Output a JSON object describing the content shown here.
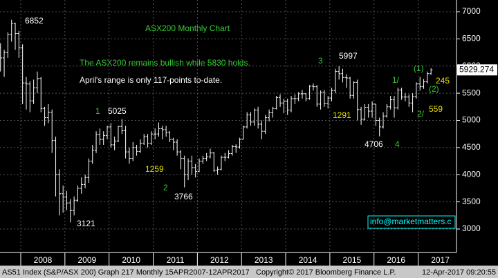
{
  "chart_data": {
    "type": "ohlc",
    "title": "ASX200 Monthly Chart",
    "notes": [
      "The ASX200 remains bullish while 5830 holds.",
      "April's range is only 117-points to-date."
    ],
    "annotations": [
      "6852",
      "1",
      "5025",
      "1259",
      "2",
      "3766",
      "3121",
      "3",
      "5997",
      "1291",
      "4706",
      "4",
      "1/",
      "(1)",
      "(2)",
      "245",
      "2/",
      "559"
    ],
    "xticks": [
      "2008",
      "2009",
      "2010",
      "2011",
      "2012",
      "2013",
      "2014",
      "2015",
      "2016",
      "2017"
    ],
    "ylim": [
      2700,
      7200
    ],
    "yticks": [
      3000,
      3500,
      4000,
      4500,
      5000,
      5500,
      6000,
      6500,
      7000
    ],
    "grid": true,
    "color": "#ffffff",
    "watermark": "info@marketmatters.c",
    "footer": [
      "AS51 Index (S&P/ASX 200) Graph 217  Monthly 15APR2007-12APR2017",
      "Copyright© 2017 Bloomberg Finance L.P.",
      "12-Apr-2017 09:20:55"
    ],
    "ohlc": {
      "open": [
        6000,
        6330,
        6400,
        6340,
        6150,
        6250,
        6580,
        6780,
        6600,
        6340,
        5690,
        5670,
        5360,
        5600,
        5770,
        5220,
        5050,
        5150,
        4630,
        4000,
        3650,
        3590,
        3480,
        3340,
        3530,
        3750,
        3820,
        3950,
        4250,
        4450,
        4740,
        4650,
        4720,
        4880,
        4550,
        4620,
        4890,
        4810,
        4420,
        4300,
        4500,
        4430,
        4580,
        4700,
        4580,
        4750,
        4750,
        4850,
        4830,
        4780,
        4650,
        4600,
        4420,
        4300,
        4000,
        4250,
        4130,
        4060,
        4250,
        4300,
        4330,
        4400,
        4080,
        4100,
        4320,
        4320,
        4390,
        4520,
        4510,
        4650,
        4880,
        5100,
        4970,
        5190,
        4930,
        4800,
        5050,
        5140,
        5220,
        5420,
        5320,
        5350,
        5190,
        5400,
        5400,
        5490,
        5490,
        5400,
        5630,
        5620,
        5300,
        5520,
        5310,
        5410,
        5550,
        5900,
        5860,
        5790,
        5780,
        5460,
        5700,
        5200,
        5020,
        5240,
        5170,
        5300,
        5000,
        4880,
        5080,
        5250,
        5380,
        5230,
        5560,
        5430,
        5430,
        5320,
        5440,
        5670,
        5620,
        5710,
        5860
      ],
      "high": [
        6400,
        6450,
        6480,
        6420,
        6300,
        6620,
        6852,
        6800,
        6650,
        6400,
        5800,
        5720,
        5750,
        5900,
        5800,
        5250,
        5300,
        5200,
        4700,
        4100,
        3800,
        3700,
        3550,
        3600,
        3800,
        3950,
        4000,
        4300,
        4550,
        4800,
        4850,
        4800,
        4900,
        4950,
        4700,
        4900,
        5025,
        4900,
        4500,
        4600,
        4550,
        4650,
        4750,
        4750,
        4800,
        4850,
        4960,
        4900,
        4900,
        4800,
        4680,
        4650,
        4450,
        4350,
        4300,
        4350,
        4200,
        4300,
        4350,
        4400,
        4480,
        4420,
        4150,
        4350,
        4400,
        4450,
        4550,
        4560,
        4680,
        4900,
        5150,
        5150,
        5220,
        5250,
        5000,
        5100,
        5200,
        5250,
        5450,
        5480,
        5400,
        5400,
        5450,
        5480,
        5520,
        5560,
        5500,
        5650,
        5680,
        5650,
        5550,
        5560,
        5450,
        5600,
        5950,
        5997,
        5950,
        5850,
        5800,
        5720,
        5750,
        5250,
        5300,
        5300,
        5350,
        5300,
        5050,
        5150,
        5300,
        5450,
        5450,
        5600,
        5600,
        5500,
        5480,
        5500,
        5700,
        5800,
        5760,
        5900,
        5960
      ],
      "low": [
        5500,
        6250,
        6200,
        5900,
        5800,
        6150,
        6450,
        6300,
        6150,
        5300,
        5200,
        5150,
        5300,
        5500,
        5150,
        4900,
        4950,
        4400,
        3600,
        3250,
        3300,
        3350,
        3121,
        3250,
        3500,
        3650,
        3750,
        3850,
        4200,
        4400,
        4550,
        4550,
        4650,
        4500,
        4450,
        4600,
        4750,
        4300,
        4200,
        4250,
        4350,
        4400,
        4550,
        4500,
        4550,
        4650,
        4700,
        4650,
        4700,
        4600,
        4450,
        4350,
        4100,
        3766,
        3900,
        4000,
        3950,
        4050,
        4200,
        4250,
        4300,
        4050,
        4000,
        4080,
        4250,
        4300,
        4350,
        4400,
        4480,
        4650,
        4850,
        4900,
        4900,
        4850,
        4650,
        4750,
        4980,
        5050,
        5200,
        5250,
        5130,
        5100,
        5150,
        5300,
        5350,
        5400,
        5350,
        5380,
        5550,
        5250,
        5200,
        5250,
        5220,
        5350,
        5500,
        5750,
        5700,
        5600,
        5400,
        5400,
        5000,
        4920,
        5000,
        5050,
        5050,
        4900,
        4706,
        4850,
        5050,
        5200,
        5050,
        5200,
        5380,
        5350,
        5250,
        5150,
        5400,
        5550,
        5580,
        5680,
        5840
      ],
      "close": [
        6330,
        6400,
        6340,
        6150,
        6250,
        6580,
        6780,
        6600,
        6340,
        5690,
        5670,
        5360,
        5600,
        5770,
        5220,
        5050,
        5150,
        4630,
        4000,
        3650,
        3590,
        3480,
        3340,
        3530,
        3750,
        3820,
        3950,
        4250,
        4450,
        4740,
        4650,
        4720,
        4880,
        4550,
        4620,
        4890,
        4810,
        4420,
        4300,
        4500,
        4430,
        4580,
        4700,
        4580,
        4750,
        4750,
        4850,
        4830,
        4780,
        4650,
        4600,
        4420,
        4300,
        4000,
        4250,
        4130,
        4060,
        4250,
        4300,
        4330,
        4400,
        4080,
        4100,
        4320,
        4320,
        4390,
        4520,
        4510,
        4650,
        4880,
        5100,
        4970,
        5190,
        4930,
        4800,
        5050,
        5140,
        5220,
        5420,
        5320,
        5350,
        5190,
        5400,
        5400,
        5490,
        5490,
        5400,
        5630,
        5620,
        5300,
        5520,
        5310,
        5410,
        5550,
        5900,
        5860,
        5790,
        5780,
        5460,
        5700,
        5200,
        5020,
        5240,
        5170,
        5300,
        5000,
        4880,
        5080,
        5250,
        5380,
        5230,
        5560,
        5430,
        5430,
        5320,
        5440,
        5670,
        5620,
        5710,
        5860,
        5929.274
      ]
    }
  }
}
